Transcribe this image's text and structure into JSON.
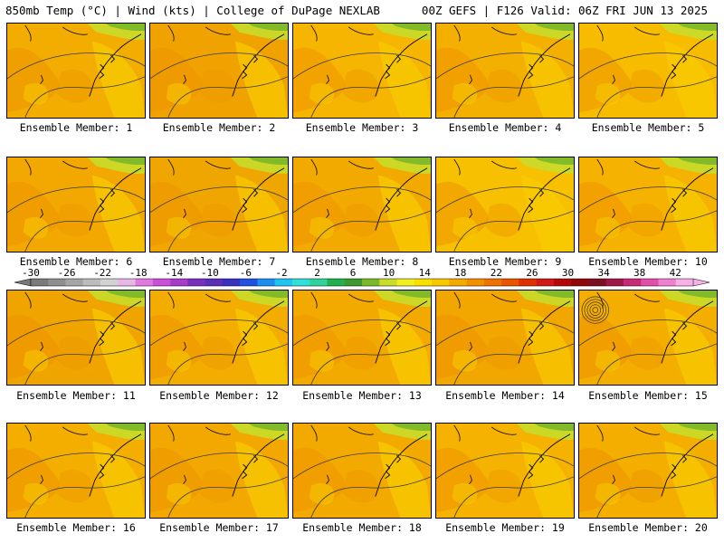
{
  "header": {
    "left": "850mb Temp (°C) | Wind (kts) | College of DuPage NEXLAB",
    "right": "00Z GEFS | F126 Valid: 06Z FRI JUN 13 2025"
  },
  "members": [
    {
      "label": "Ensemble Member: 1"
    },
    {
      "label": "Ensemble Member: 2"
    },
    {
      "label": "Ensemble Member: 3"
    },
    {
      "label": "Ensemble Member: 4"
    },
    {
      "label": "Ensemble Member: 5"
    },
    {
      "label": "Ensemble Member: 6"
    },
    {
      "label": "Ensemble Member: 7"
    },
    {
      "label": "Ensemble Member: 8"
    },
    {
      "label": "Ensemble Member: 9"
    },
    {
      "label": "Ensemble Member: 10"
    },
    {
      "label": "Ensemble Member: 11"
    },
    {
      "label": "Ensemble Member: 12"
    },
    {
      "label": "Ensemble Member: 13"
    },
    {
      "label": "Ensemble Member: 14"
    },
    {
      "label": "Ensemble Member: 15"
    },
    {
      "label": "Ensemble Member: 16"
    },
    {
      "label": "Ensemble Member: 17"
    },
    {
      "label": "Ensemble Member: 18"
    },
    {
      "label": "Ensemble Member: 19"
    },
    {
      "label": "Ensemble Member: 20"
    }
  ],
  "colorbar": {
    "tick_labels": [
      "-30",
      "-26",
      "-22",
      "-18",
      "-14",
      "-10",
      "-6",
      "-2",
      "2",
      "6",
      "10",
      "14",
      "18",
      "22",
      "26",
      "30",
      "34",
      "38",
      "42"
    ],
    "colors": [
      "#7a7a7a",
      "#8f8f8f",
      "#a5a5a5",
      "#bcbcbc",
      "#d2d2d2",
      "#e8b7e8",
      "#e07ae0",
      "#c850d8",
      "#a83cc8",
      "#7a2fbf",
      "#5a2fb8",
      "#3a30c0",
      "#2050e0",
      "#1f8cf0",
      "#20c4f0",
      "#30e0d8",
      "#2fd39a",
      "#20b050",
      "#3a9a2c",
      "#7ab82a",
      "#c8dc2a",
      "#f0f020",
      "#f8e000",
      "#f8c800",
      "#f5aa00",
      "#f29000",
      "#ee7200",
      "#e85400",
      "#e03000",
      "#d01818",
      "#b40808",
      "#900808",
      "#7a1020",
      "#a01848",
      "#c82a78",
      "#e050a8",
      "#f080d0",
      "#f8b0e8"
    ]
  }
}
